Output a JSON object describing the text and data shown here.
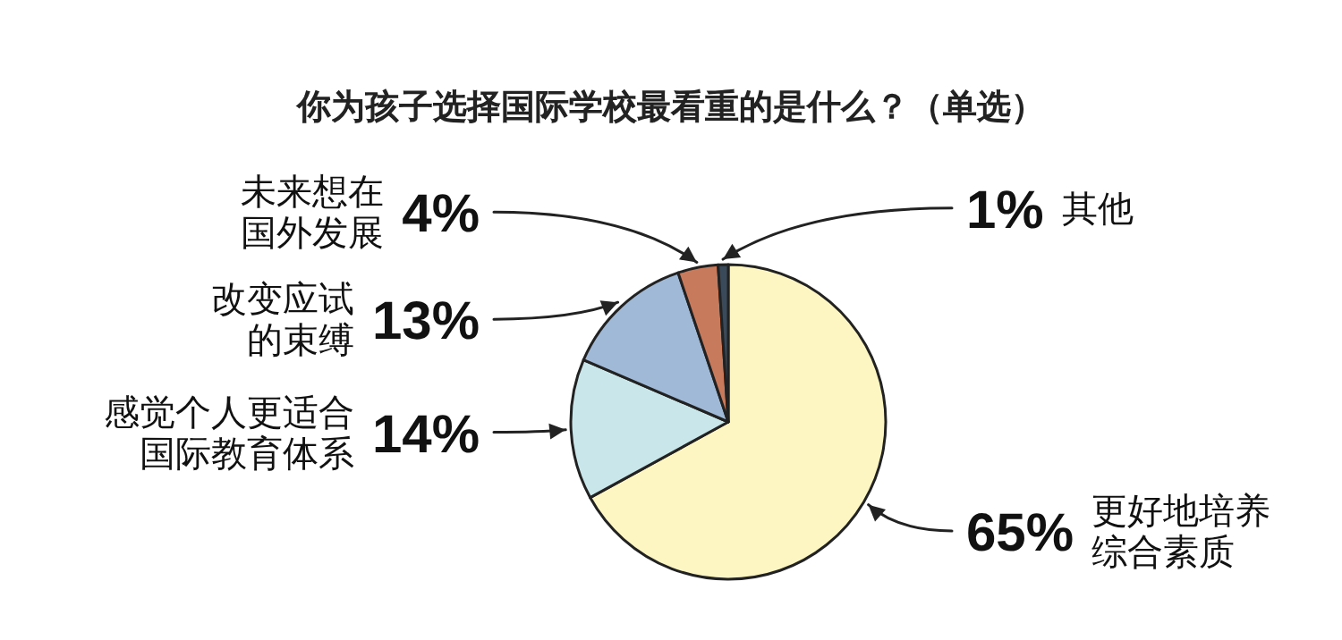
{
  "chart_data": {
    "type": "pie",
    "title": "你为孩子选择国际学校最看重的是什么？（单选）",
    "categories": [
      "更好地培养综合素质",
      "感觉个人更适合国际教育体系",
      "改变应试的束缚",
      "未来想在国外发展",
      "其他"
    ],
    "values": [
      65,
      14,
      13,
      4,
      1
    ],
    "value_labels": [
      "65%",
      "14%",
      "13%",
      "4%",
      "1%"
    ],
    "colors": [
      "#fdf6c3",
      "#c9e6ea",
      "#9fb9d6",
      "#c87a5c",
      "#3a4a5a"
    ]
  }
}
